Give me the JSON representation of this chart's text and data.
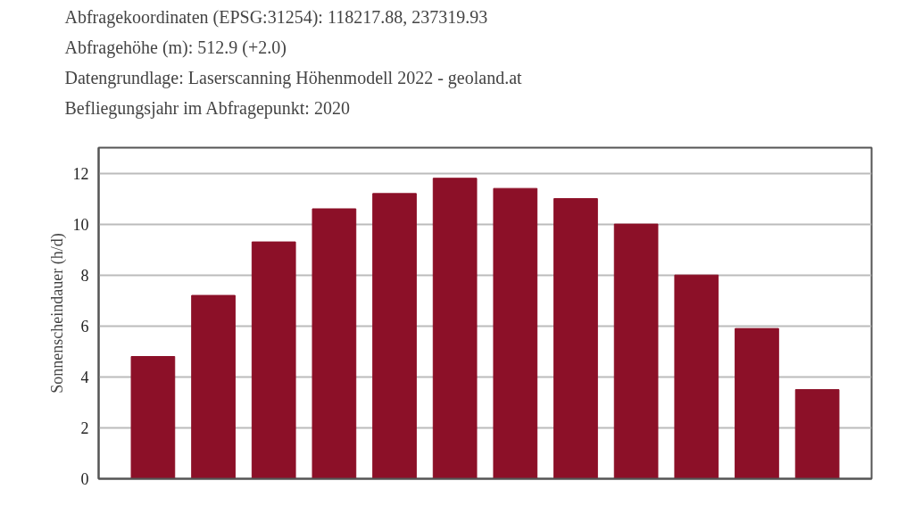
{
  "chart_data": {
    "type": "bar",
    "annotations": [
      "Abfragekoordinaten (EPSG:31254): 118217.88, 237319.93",
      "Abfragehöhe (m): 512.9 (+2.0)",
      "Datengrundlage: Laserscanning Höhenmodell 2022 - geoland.at",
      "Befliegungsjahr im Abfragepunkt: 2020"
    ],
    "ylabel": "Sonnenscheindauer (h/d)",
    "categories": [
      null,
      null,
      null,
      null,
      null,
      null,
      null,
      null,
      null,
      null,
      null,
      null
    ],
    "values": [
      4.8,
      7.2,
      9.3,
      10.6,
      11.2,
      11.8,
      11.4,
      11.0,
      10.0,
      8.0,
      5.9,
      3.5
    ],
    "color": "#8c1028",
    "ylim": [
      0,
      13
    ],
    "yticks": [
      0,
      2,
      4,
      6,
      8,
      10,
      12
    ],
    "grid": "y",
    "tick_labels": "y"
  }
}
